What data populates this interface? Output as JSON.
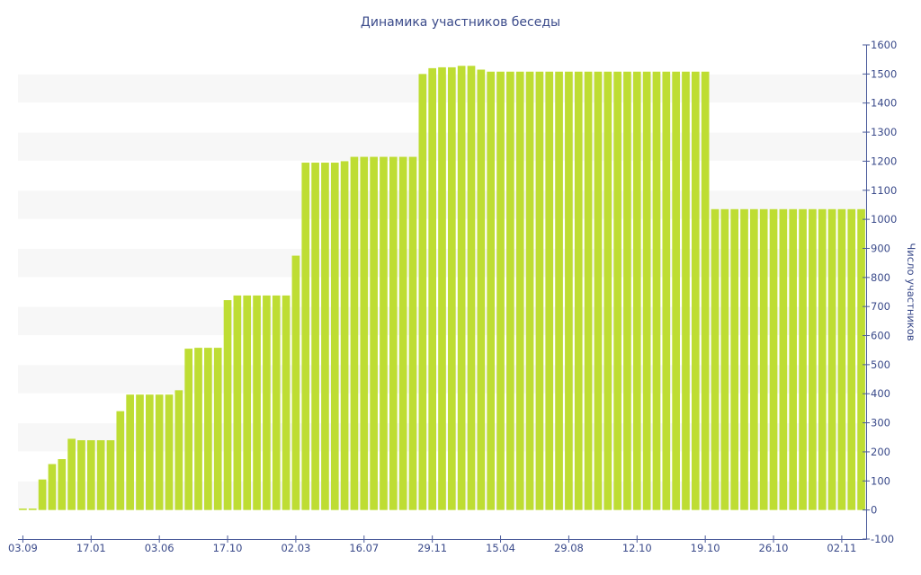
{
  "chart_data": {
    "type": "bar",
    "title": "Динамика участников беседы",
    "xlabel": "",
    "ylabel": "Число участников",
    "ylim": [
      -100,
      1600
    ],
    "yticks": [
      -100,
      0,
      100,
      200,
      300,
      400,
      500,
      600,
      700,
      800,
      900,
      1000,
      1100,
      1200,
      1300,
      1400,
      1500,
      1600
    ],
    "y_axis_position": "right",
    "x_tick_labels": [
      {
        "label": "03.09",
        "index": 0
      },
      {
        "label": "17.01",
        "index": 7
      },
      {
        "label": "03.06",
        "index": 14
      },
      {
        "label": "17.10",
        "index": 21
      },
      {
        "label": "02.03",
        "index": 28
      },
      {
        "label": "16.07",
        "index": 35
      },
      {
        "label": "29.11",
        "index": 42
      },
      {
        "label": "15.04",
        "index": 49
      },
      {
        "label": "29.08",
        "index": 56
      },
      {
        "label": "12.10",
        "index": 63
      },
      {
        "label": "19.10",
        "index": 70
      },
      {
        "label": "26.10",
        "index": 77
      },
      {
        "label": "02.11",
        "index": 84
      }
    ],
    "background_bands": "alternating",
    "bar_color": "#bedd33",
    "values": [
      5,
      5,
      105,
      158,
      175,
      245,
      240,
      240,
      240,
      240,
      340,
      397,
      397,
      397,
      397,
      397,
      412,
      555,
      558,
      558,
      558,
      722,
      738,
      738,
      738,
      738,
      738,
      738,
      875,
      1195,
      1195,
      1195,
      1195,
      1200,
      1215,
      1215,
      1215,
      1215,
      1215,
      1215,
      1215,
      1500,
      1520,
      1523,
      1523,
      1528,
      1528,
      1515,
      1508,
      1508,
      1508,
      1508,
      1508,
      1508,
      1508,
      1508,
      1508,
      1508,
      1508,
      1508,
      1508,
      1508,
      1508,
      1508,
      1508,
      1508,
      1508,
      1508,
      1508,
      1508,
      1508,
      1035,
      1035,
      1035,
      1035,
      1035,
      1035,
      1035,
      1035,
      1035,
      1035,
      1035,
      1035,
      1035,
      1035,
      1035,
      1035
    ]
  }
}
